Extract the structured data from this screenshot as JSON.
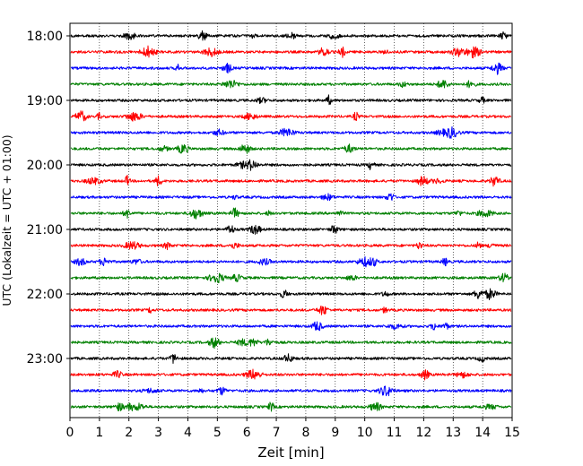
{
  "chart_data": {
    "type": "line",
    "title": "",
    "xlabel": "Zeit  [min]",
    "ylabel": "UTC (Lokalzeit = UTC + 01:00)",
    "xlim": [
      0,
      15
    ],
    "x_ticks": [
      "0",
      "1",
      "2",
      "3",
      "4",
      "5",
      "6",
      "7",
      "8",
      "9",
      "10",
      "11",
      "12",
      "13",
      "14",
      "15"
    ],
    "y_ticks": [
      "18:00",
      "19:00",
      "20:00",
      "21:00",
      "22:00",
      "23:00"
    ],
    "grid": "vertical dotted lines at each minute",
    "legend": "none",
    "trace_colors": [
      "#000000",
      "#ff0000",
      "#0000ff",
      "#008000"
    ],
    "series": [
      {
        "start": "18:00"
      },
      {
        "start": "18:15"
      },
      {
        "start": "18:30"
      },
      {
        "start": "18:45"
      },
      {
        "start": "19:00"
      },
      {
        "start": "19:15"
      },
      {
        "start": "19:30"
      },
      {
        "start": "19:45"
      },
      {
        "start": "20:00"
      },
      {
        "start": "20:15"
      },
      {
        "start": "20:30"
      },
      {
        "start": "20:45"
      },
      {
        "start": "21:00"
      },
      {
        "start": "21:15"
      },
      {
        "start": "21:30"
      },
      {
        "start": "21:45"
      },
      {
        "start": "22:00"
      },
      {
        "start": "22:15"
      },
      {
        "start": "22:30"
      },
      {
        "start": "22:45"
      },
      {
        "start": "23:00"
      },
      {
        "start": "23:15"
      },
      {
        "start": "23:30"
      },
      {
        "start": "23:45"
      }
    ]
  }
}
